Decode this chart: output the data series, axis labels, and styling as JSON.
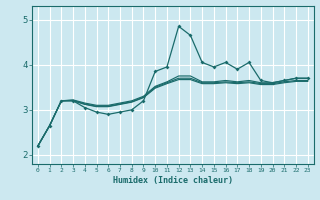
{
  "xlabel": "Humidex (Indice chaleur)",
  "xlim": [
    -0.5,
    23.5
  ],
  "ylim": [
    1.8,
    5.3
  ],
  "background_color": "#cce8f0",
  "line_color": "#1a6b6b",
  "grid_color": "#ffffff",
  "yticks": [
    2,
    3,
    4,
    5
  ],
  "xticks": [
    0,
    1,
    2,
    3,
    4,
    5,
    6,
    7,
    8,
    9,
    10,
    11,
    12,
    13,
    14,
    15,
    16,
    17,
    18,
    19,
    20,
    21,
    22,
    23
  ],
  "series": [
    {
      "x": [
        0,
        1,
        2,
        3,
        4,
        5,
        6,
        7,
        8,
        9,
        10,
        11,
        12,
        13,
        14,
        15,
        16,
        17,
        18,
        19,
        20,
        21,
        22,
        23
      ],
      "y": [
        2.2,
        2.65,
        3.2,
        3.2,
        3.05,
        2.95,
        2.9,
        2.95,
        3.0,
        3.2,
        3.85,
        3.95,
        4.85,
        4.65,
        4.05,
        3.95,
        4.05,
        3.9,
        4.05,
        3.65,
        3.6,
        3.65,
        3.7,
        3.7
      ],
      "marker": true
    },
    {
      "x": [
        0,
        1,
        2,
        3,
        4,
        5,
        6,
        7,
        8,
        9,
        10,
        11,
        12,
        13,
        14,
        15,
        16,
        17,
        18,
        19,
        20,
        21,
        22,
        23
      ],
      "y": [
        2.2,
        2.65,
        3.2,
        3.22,
        3.15,
        3.1,
        3.1,
        3.15,
        3.2,
        3.3,
        3.52,
        3.62,
        3.75,
        3.75,
        3.62,
        3.62,
        3.65,
        3.62,
        3.65,
        3.6,
        3.6,
        3.65,
        3.7,
        3.7
      ],
      "marker": false
    },
    {
      "x": [
        0,
        1,
        2,
        3,
        4,
        5,
        6,
        7,
        8,
        9,
        10,
        11,
        12,
        13,
        14,
        15,
        16,
        17,
        18,
        19,
        20,
        21,
        22,
        23
      ],
      "y": [
        2.2,
        2.65,
        3.2,
        3.21,
        3.13,
        3.08,
        3.08,
        3.13,
        3.18,
        3.28,
        3.5,
        3.6,
        3.7,
        3.7,
        3.6,
        3.6,
        3.62,
        3.6,
        3.62,
        3.58,
        3.58,
        3.62,
        3.65,
        3.65
      ],
      "marker": false
    },
    {
      "x": [
        0,
        1,
        2,
        3,
        4,
        5,
        6,
        7,
        8,
        9,
        10,
        11,
        12,
        13,
        14,
        15,
        16,
        17,
        18,
        19,
        20,
        21,
        22,
        23
      ],
      "y": [
        2.2,
        2.65,
        3.2,
        3.2,
        3.12,
        3.07,
        3.07,
        3.12,
        3.17,
        3.27,
        3.48,
        3.58,
        3.67,
        3.67,
        3.58,
        3.58,
        3.6,
        3.58,
        3.6,
        3.56,
        3.56,
        3.6,
        3.63,
        3.63
      ],
      "marker": false
    }
  ]
}
